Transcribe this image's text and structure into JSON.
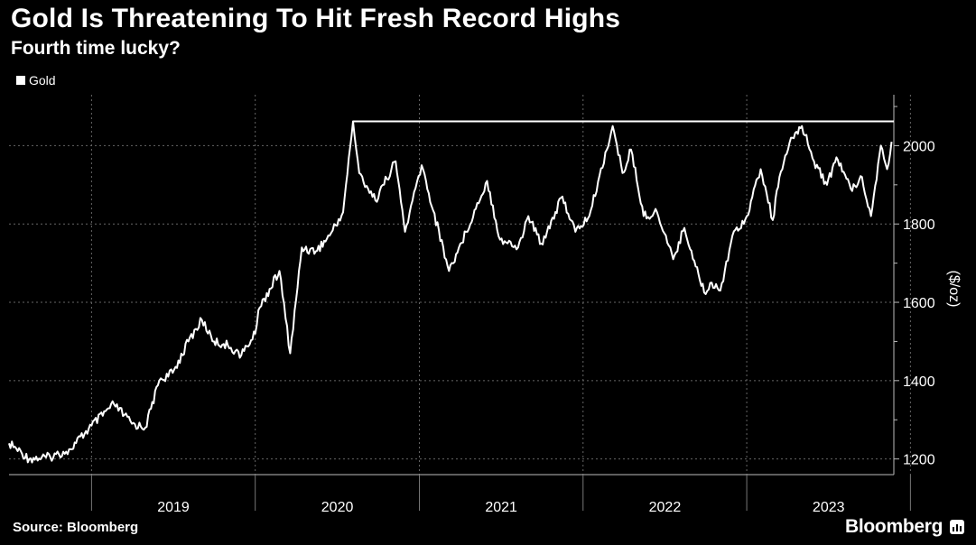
{
  "header": {
    "title": "Gold Is Threatening To Hit Fresh Record Highs",
    "subtitle": "Fourth time lucky?"
  },
  "footer": {
    "source": "Source: Bloomberg",
    "brand": "Bloomberg"
  },
  "chart_data": {
    "type": "line",
    "title": "Gold Is Threatening To Hit Fresh Record Highs",
    "subtitle": "Fourth time lucky?",
    "xlabel": "",
    "ylabel": "($/oz)",
    "ylim": [
      1160,
      2130
    ],
    "xlim": [
      "2018-07-01",
      "2023-11-25"
    ],
    "y_ticks": [
      1200,
      1400,
      1600,
      1800,
      2000
    ],
    "y_tick_labels": [
      "1200",
      "1400",
      "1600",
      "1800",
      "2000"
    ],
    "x_labels": [
      "2019",
      "2020",
      "2021",
      "2022",
      "2023"
    ],
    "grid": true,
    "legend_position": "top-left",
    "line_color": "#ffffff",
    "background_color": "#000000",
    "annotations": [
      {
        "type": "horizontal-line",
        "y": 2062,
        "x_start": "2020-08-06",
        "x_end": "2023-11-25"
      }
    ],
    "series": [
      {
        "name": "Gold",
        "x": [
          "2018-07-01",
          "2018-08-15",
          "2018-10-01",
          "2018-11-15",
          "2019-01-01",
          "2019-02-20",
          "2019-04-01",
          "2019-05-01",
          "2019-06-01",
          "2019-07-01",
          "2019-08-05",
          "2019-09-04",
          "2019-10-01",
          "2019-11-01",
          "2019-12-01",
          "2020-01-01",
          "2020-01-08",
          "2020-02-24",
          "2020-03-19",
          "2020-04-14",
          "2020-05-15",
          "2020-06-15",
          "2020-07-15",
          "2020-08-06",
          "2020-08-20",
          "2020-09-25",
          "2020-11-09",
          "2020-11-30",
          "2021-01-06",
          "2021-03-08",
          "2021-04-15",
          "2021-06-01",
          "2021-06-30",
          "2021-08-09",
          "2021-09-01",
          "2021-09-30",
          "2021-11-16",
          "2021-12-15",
          "2022-01-15",
          "2022-03-08",
          "2022-03-30",
          "2022-04-18",
          "2022-05-16",
          "2022-06-15",
          "2022-07-21",
          "2022-08-15",
          "2022-09-28",
          "2022-10-15",
          "2022-11-03",
          "2022-11-30",
          "2023-01-01",
          "2023-02-01",
          "2023-02-28",
          "2023-03-15",
          "2023-04-13",
          "2023-05-04",
          "2023-05-31",
          "2023-06-29",
          "2023-07-20",
          "2023-08-21",
          "2023-09-15",
          "2023-10-05",
          "2023-10-27",
          "2023-11-10",
          "2023-11-20"
        ],
        "values": [
          1240,
          1200,
          1205,
          1225,
          1285,
          1340,
          1290,
          1280,
          1400,
          1420,
          1500,
          1555,
          1500,
          1490,
          1465,
          1520,
          1580,
          1680,
          1470,
          1740,
          1730,
          1770,
          1830,
          2062,
          1930,
          1860,
          1960,
          1780,
          1950,
          1680,
          1780,
          1910,
          1760,
          1740,
          1820,
          1750,
          1870,
          1780,
          1820,
          2050,
          1930,
          1990,
          1820,
          1830,
          1710,
          1790,
          1625,
          1650,
          1630,
          1770,
          1820,
          1940,
          1810,
          1920,
          2020,
          2050,
          1960,
          1900,
          1970,
          1890,
          1920,
          1820,
          2000,
          1940,
          2010
        ]
      }
    ]
  }
}
